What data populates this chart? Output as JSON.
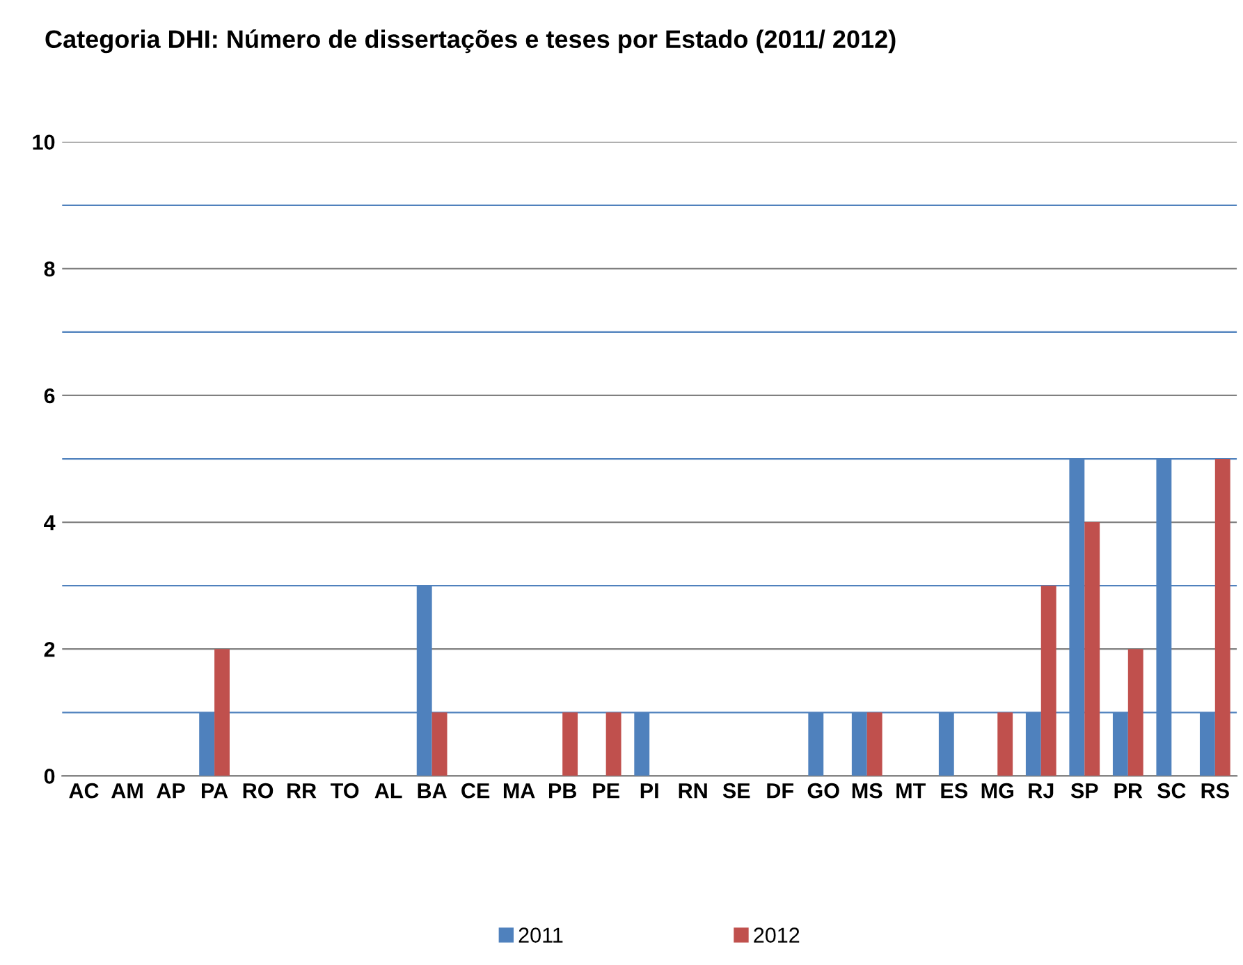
{
  "chart_data": {
    "type": "bar",
    "title": "Categoria DHI: Número de dissertações e teses por Estado (2011/ 2012)",
    "categories": [
      "AC",
      "AM",
      "AP",
      "PA",
      "RO",
      "RR",
      "TO",
      "AL",
      "BA",
      "CE",
      "MA",
      "PB",
      "PE",
      "PI",
      "RN",
      "SE",
      "DF",
      "GO",
      "MS",
      "MT",
      "ES",
      "MG",
      "RJ",
      "SP",
      "PR",
      "SC",
      "RS"
    ],
    "series": [
      {
        "name": "2011",
        "color": "#4f81bd",
        "values": [
          0,
          0,
          0,
          1,
          0,
          0,
          0,
          0,
          3,
          0,
          0,
          0,
          0,
          1,
          0,
          0,
          0,
          1,
          1,
          0,
          1,
          0,
          1,
          5,
          1,
          5,
          1
        ]
      },
      {
        "name": "2012",
        "color": "#c0504d",
        "values": [
          0,
          0,
          0,
          2,
          0,
          0,
          0,
          0,
          1,
          0,
          0,
          1,
          1,
          0,
          0,
          0,
          0,
          0,
          1,
          0,
          0,
          1,
          3,
          4,
          2,
          0,
          5
        ]
      }
    ],
    "ylim": [
      0,
      10
    ],
    "yticks": [
      0,
      {
        "value": 1,
        "label": null
      },
      2,
      {
        "value": 3,
        "label": null
      },
      4,
      {
        "value": 5,
        "label": null
      },
      6,
      {
        "value": 7,
        "label": null
      },
      8,
      {
        "value": 9,
        "label": null
      },
      10
    ],
    "grid": "y",
    "legend": "bottom"
  }
}
